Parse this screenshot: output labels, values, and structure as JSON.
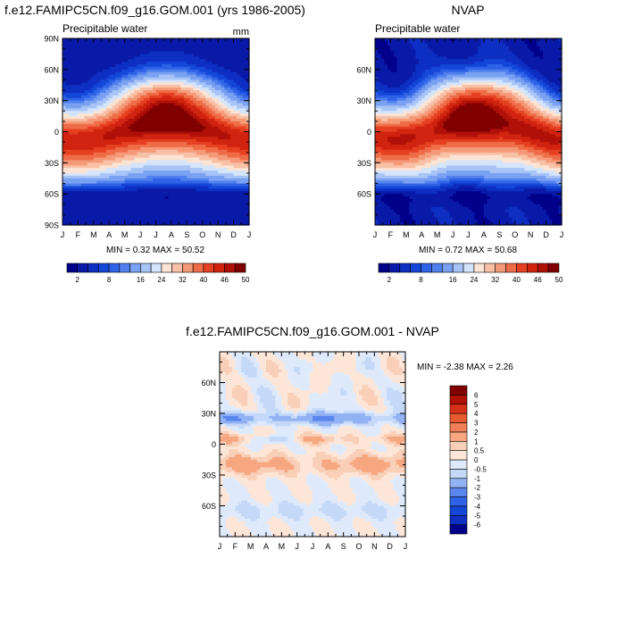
{
  "titles": {
    "left_main": "f.e12.FAMIPC5CN.f09_g16.GOM.001 (yrs 1986-2005)",
    "right_main": "NVAP",
    "bottom_main": "f.e12.FAMIPC5CN.f09_g16.GOM.001 - NVAP"
  },
  "chart_data": [
    {
      "type": "heatmap",
      "id": "model",
      "subtitle_left": "Precipitable water",
      "subtitle_right": "mm",
      "x": [
        "J",
        "F",
        "M",
        "A",
        "M",
        "J",
        "J",
        "A",
        "S",
        "O",
        "N",
        "D",
        "J"
      ],
      "y_ticks": [
        "90N",
        "60N",
        "30N",
        "0",
        "30S",
        "60S",
        "90S"
      ],
      "ylim": [
        -90,
        90
      ],
      "stats": "MIN =   0.32 MAX =  50.52",
      "levels": [
        2,
        4,
        6,
        8,
        10,
        12,
        16,
        20,
        24,
        28,
        32,
        36,
        40,
        43,
        46,
        48,
        50
      ],
      "colorbar_labels": [
        "2",
        "8",
        "16",
        "24",
        "32",
        "40",
        "46",
        "50"
      ],
      "min": 0.32,
      "max": 50.52
    },
    {
      "type": "heatmap",
      "id": "obs",
      "subtitle_left": "Precipitable water",
      "subtitle_right": "",
      "x": [
        "J",
        "F",
        "M",
        "A",
        "M",
        "J",
        "J",
        "A",
        "S",
        "O",
        "N",
        "D",
        "J"
      ],
      "y_ticks": [
        "60N",
        "30N",
        "0",
        "30S",
        "60S"
      ],
      "ylim": [
        -90,
        90
      ],
      "stats": "MIN =   0.72 MAX =  50.68",
      "levels": [
        2,
        4,
        6,
        8,
        10,
        12,
        16,
        20,
        24,
        28,
        32,
        36,
        40,
        43,
        46,
        48,
        50
      ],
      "colorbar_labels": [
        "2",
        "8",
        "16",
        "24",
        "32",
        "40",
        "46",
        "50"
      ],
      "min": 0.72,
      "max": 50.68
    },
    {
      "type": "heatmap",
      "id": "diff",
      "x": [
        "J",
        "F",
        "M",
        "A",
        "M",
        "J",
        "J",
        "A",
        "S",
        "O",
        "N",
        "D",
        "J"
      ],
      "y_ticks": [
        "60N",
        "30N",
        "0",
        "30S",
        "60S"
      ],
      "ylim": [
        -90,
        90
      ],
      "stats": "MIN =  -2.38 MAX =   2.26",
      "levels": [
        -6,
        -5,
        -4,
        -3,
        -2,
        -1,
        -0.5,
        0,
        0.5,
        1,
        2,
        3,
        4,
        5,
        6
      ],
      "colorbar_labels": [
        "-6",
        "-5",
        "-4",
        "-3",
        "-2",
        "-1",
        "-0.5",
        "0",
        "0.5",
        "1",
        "2",
        "3",
        "4",
        "5",
        "6"
      ],
      "min": -2.38,
      "max": 2.26
    }
  ],
  "colors": {
    "pw_palette": [
      "#00008b",
      "#0a1aa8",
      "#0d2fc2",
      "#1446d8",
      "#2f62e6",
      "#4f80ee",
      "#7aa0f2",
      "#a8c4f6",
      "#d4e4fb",
      "#fbe4d4",
      "#f8c0a6",
      "#f59a78",
      "#ef6c48",
      "#e64022",
      "#d02410",
      "#b01008",
      "#800000"
    ],
    "diff_palette": [
      "#00008b",
      "#0d2fc2",
      "#1446d8",
      "#2f62e6",
      "#5a86ee",
      "#93b2f4",
      "#c4d8f8",
      "#deeafc",
      "#fde6d8",
      "#f9cfb8",
      "#f6a780",
      "#f07e56",
      "#e85a30",
      "#d6301a",
      "#b01008",
      "#800000"
    ]
  }
}
